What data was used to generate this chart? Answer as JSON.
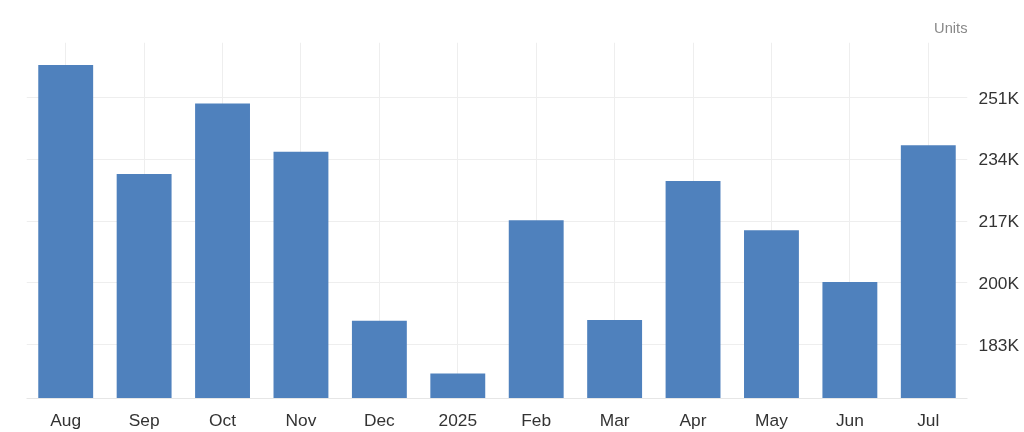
{
  "chart_data": {
    "type": "bar",
    "ylabel": "Units",
    "categories": [
      "Aug",
      "Sep",
      "Oct",
      "Nov",
      "Dec",
      "2025",
      "Feb",
      "Mar",
      "Apr",
      "May",
      "Jun",
      "Jul"
    ],
    "values": [
      260000,
      230000,
      249400,
      236100,
      189600,
      175100,
      217300,
      189800,
      228100,
      214500,
      200300,
      237900
    ],
    "color": "#4f81bd",
    "ylim": [
      168200,
      266200
    ],
    "yticks": [
      {
        "value": 183000,
        "label": "183K"
      },
      {
        "value": 200000,
        "label": "200K"
      },
      {
        "value": 217000,
        "label": "217K"
      },
      {
        "value": 234000,
        "label": "234K"
      },
      {
        "value": 251000,
        "label": "251K"
      }
    ],
    "grid": true
  }
}
